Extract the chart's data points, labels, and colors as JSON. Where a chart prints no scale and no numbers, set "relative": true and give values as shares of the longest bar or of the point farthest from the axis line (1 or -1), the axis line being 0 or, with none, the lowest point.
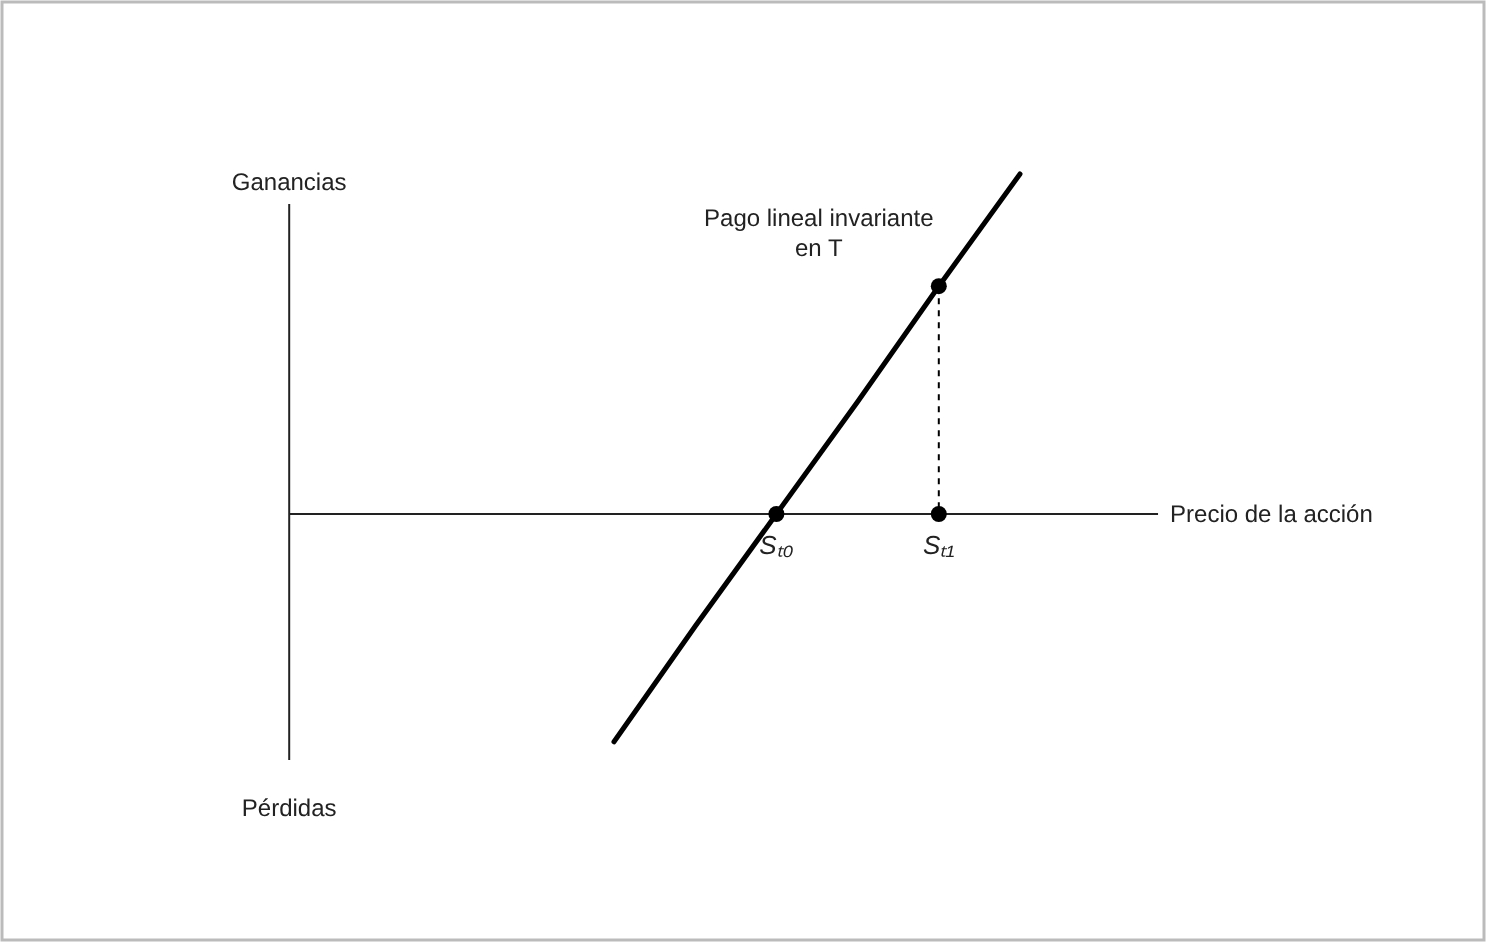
{
  "chart_data": {
    "type": "line",
    "relative": true,
    "xlabel": "Precio de la acción",
    "categories": [
      null,
      null,
      "Sₜ₀",
      null,
      "Sₜ₁",
      null
    ],
    "series": [
      {
        "color": "#000000",
        "values": [
          -0.67,
          -0.33,
          0,
          0.33,
          0.67,
          1
        ],
        "marker": "none",
        "line_style": "solid"
      },
      {
        "type": "scatter",
        "color": "#000000",
        "values": [
          null,
          null,
          null,
          null,
          0.67,
          null
        ],
        "marker": "circle",
        "line_style": "dashed"
      },
      {
        "type": "scatter",
        "color": "#000000",
        "values": [
          null,
          null,
          0,
          null,
          0,
          null
        ],
        "marker": "circle"
      }
    ],
    "annotations": [
      {
        "text": "Pago lineal invariante en T",
        "x": "Sₜ₁",
        "y": 0.67
      },
      "Ganancias",
      "Pérdidas"
    ]
  }
}
